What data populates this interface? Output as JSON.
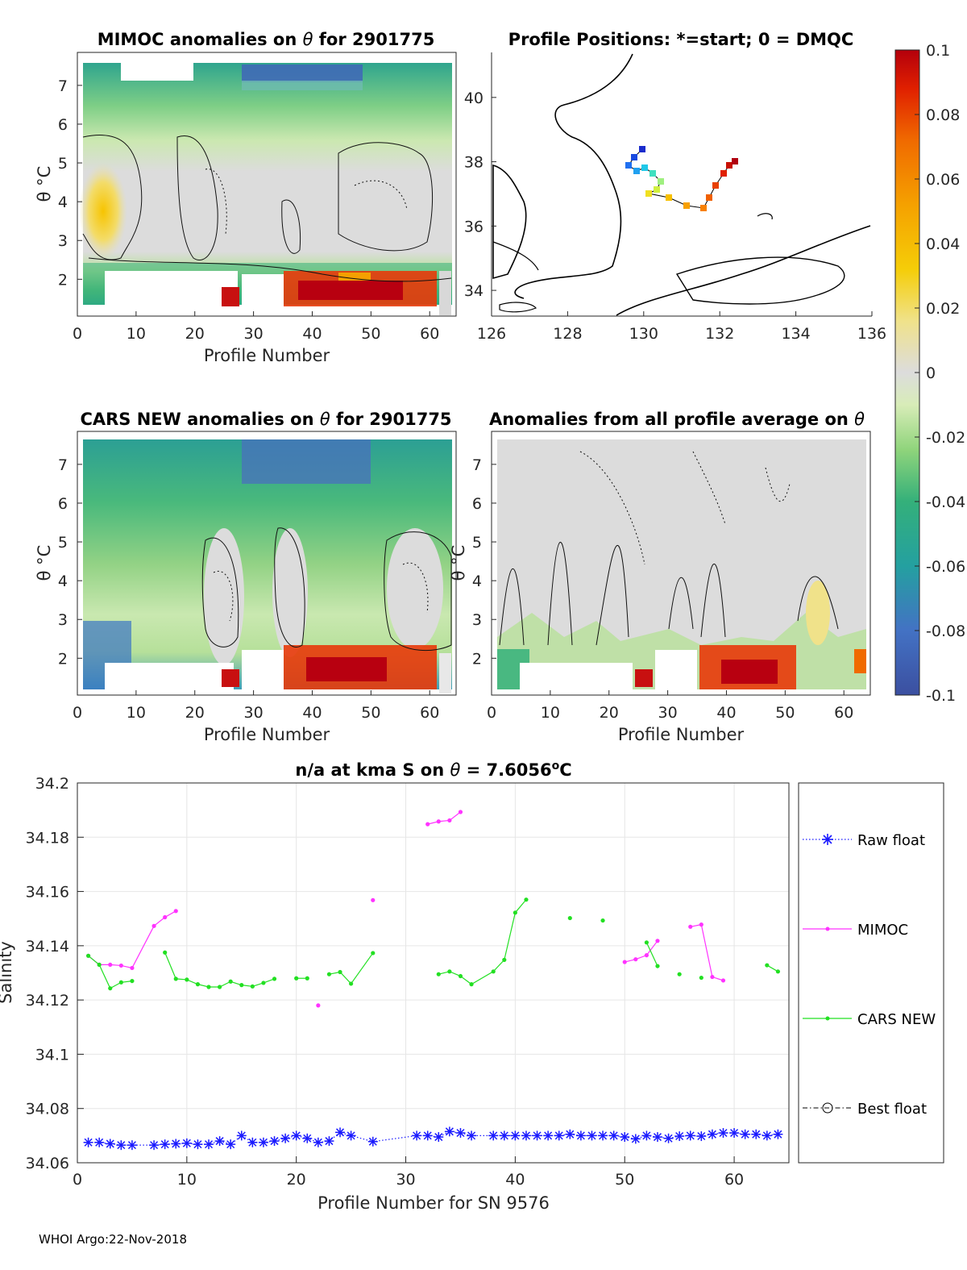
{
  "colors": {
    "raw": "#1a1aff",
    "mimoc": "#ff33ff",
    "cars": "#22e022",
    "best": "#000000",
    "grid": "#e6e6e6",
    "axis": "#262626"
  },
  "panels": {
    "mimoc": {
      "title_a": "MIMOC anomalies on ",
      "title_sym": "θ",
      "title_b": "  for 2901775",
      "xlabel": "Profile Number",
      "ylabel": "θ °C",
      "xticks": [
        "0",
        "10",
        "20",
        "30",
        "40",
        "50",
        "60"
      ],
      "yticks": [
        "2",
        "3",
        "4",
        "5",
        "6",
        "7"
      ]
    },
    "map": {
      "title": "Profile Positions: *=start; 0 = DMQC",
      "xticks": [
        "126",
        "128",
        "130",
        "132",
        "134",
        "136"
      ],
      "yticks": [
        "34",
        "36",
        "38",
        "40"
      ]
    },
    "cars": {
      "title_a": "CARS NEW anomalies on ",
      "title_sym": "θ",
      "title_b": " for 2901775",
      "xlabel": "Profile Number",
      "ylabel": "θ °C",
      "xticks": [
        "0",
        "10",
        "20",
        "30",
        "40",
        "50",
        "60"
      ],
      "yticks": [
        "2",
        "3",
        "4",
        "5",
        "6",
        "7"
      ]
    },
    "avg": {
      "title_a": "Anomalies from all profile average on ",
      "title_sym": "θ",
      "xlabel": "Profile Number",
      "ylabel": "θ °C",
      "xticks": [
        "0",
        "10",
        "20",
        "30",
        "40",
        "50",
        "60"
      ],
      "yticks": [
        "2",
        "3",
        "4",
        "5",
        "6",
        "7"
      ]
    }
  },
  "colorbar": {
    "ticks": [
      "0.1",
      "0.08",
      "0.06",
      "0.04",
      "0.02",
      "0",
      "-0.02",
      "-0.04",
      "-0.06",
      "-0.08",
      "-0.1"
    ]
  },
  "footer": "WHOI Argo:22-Nov-2018",
  "chart_data": {
    "type": "line",
    "title_a": "n/a at kma S on ",
    "title_sym": "θ",
    "title_b": " = 7.6056",
    "title_sup": "o",
    "title_unit": "C",
    "xlabel": "Profile Number for SN 9576",
    "ylabel": "Salinity",
    "xlim": [
      0,
      65
    ],
    "ylim": [
      34.06,
      34.2
    ],
    "xticks": [
      "0",
      "10",
      "20",
      "30",
      "40",
      "50",
      "60"
    ],
    "yticks": [
      "34.06",
      "34.08",
      "34.1",
      "34.12",
      "34.14",
      "34.16",
      "34.18",
      "34.2"
    ],
    "legend_position": "outside-right",
    "legend": [
      "Raw float",
      "MIMOC",
      "CARS NEW",
      "Best float"
    ],
    "series": [
      {
        "name": "Raw float",
        "style": "dotted-star",
        "segments": [
          [
            [
              1,
              34.0675
            ],
            [
              2,
              34.0675
            ],
            [
              3,
              34.067
            ],
            [
              4,
              34.0665
            ],
            [
              5,
              34.0665
            ],
            [
              7,
              34.0665
            ],
            [
              8,
              34.0668
            ],
            [
              9,
              34.067
            ],
            [
              10,
              34.0672
            ],
            [
              11,
              34.0668
            ],
            [
              12,
              34.0668
            ],
            [
              13,
              34.068
            ],
            [
              14,
              34.0668
            ],
            [
              15,
              34.07
            ],
            [
              16,
              34.0675
            ],
            [
              17,
              34.0675
            ],
            [
              18,
              34.068
            ],
            [
              19,
              34.069
            ],
            [
              20,
              34.07
            ],
            [
              21,
              34.069
            ],
            [
              22,
              34.0675
            ],
            [
              23,
              34.068
            ],
            [
              24,
              34.0712
            ],
            [
              25,
              34.07
            ],
            [
              27,
              34.0678
            ],
            [
              31,
              34.07
            ],
            [
              32,
              34.07
            ],
            [
              33,
              34.0695
            ],
            [
              34,
              34.0715
            ],
            [
              35,
              34.071
            ],
            [
              36,
              34.07
            ],
            [
              38,
              34.07
            ],
            [
              39,
              34.07
            ],
            [
              40,
              34.07
            ],
            [
              41,
              34.07
            ],
            [
              42,
              34.07
            ],
            [
              43,
              34.07
            ],
            [
              44,
              34.07
            ],
            [
              45,
              34.0705
            ],
            [
              46,
              34.07
            ],
            [
              47,
              34.07
            ],
            [
              48,
              34.07
            ],
            [
              49,
              34.07
            ],
            [
              50,
              34.0695
            ],
            [
              51,
              34.0688
            ],
            [
              52,
              34.07
            ],
            [
              53,
              34.0695
            ],
            [
              54,
              34.069
            ],
            [
              55,
              34.0698
            ],
            [
              56,
              34.07
            ],
            [
              57,
              34.0698
            ],
            [
              58,
              34.0705
            ],
            [
              59,
              34.071
            ],
            [
              60,
              34.071
            ],
            [
              61,
              34.0705
            ],
            [
              62,
              34.0705
            ],
            [
              63,
              34.07
            ],
            [
              64,
              34.0705
            ]
          ]
        ]
      },
      {
        "name": "MIMOC",
        "style": "solid-dot",
        "segments": [
          [
            [
              1,
              34.1363
            ],
            [
              2,
              34.133
            ],
            [
              3,
              34.133
            ],
            [
              4,
              34.1327
            ],
            [
              5,
              34.1318
            ],
            [
              7,
              34.1473
            ],
            [
              8,
              34.1505
            ],
            [
              9,
              34.1528
            ]
          ],
          [
            [
              22,
              34.118
            ]
          ],
          [
            [
              27,
              34.1568
            ]
          ],
          [
            [
              32,
              34.1848
            ],
            [
              33,
              34.1858
            ],
            [
              34,
              34.1862
            ],
            [
              35,
              34.1893
            ]
          ],
          [
            [
              50,
              34.134
            ],
            [
              51,
              34.135
            ],
            [
              52,
              34.1365
            ],
            [
              53,
              34.1418
            ]
          ],
          [
            [
              56,
              34.147
            ],
            [
              57,
              34.1478
            ],
            [
              58,
              34.1285
            ],
            [
              59,
              34.1272
            ]
          ]
        ]
      },
      {
        "name": "CARS NEW",
        "style": "solid-dot",
        "segments": [
          [
            [
              1,
              34.1363
            ],
            [
              2,
              34.133
            ],
            [
              3,
              34.1243
            ],
            [
              4,
              34.1265
            ],
            [
              5,
              34.127
            ]
          ],
          [
            [
              8,
              34.1375
            ],
            [
              9,
              34.1278
            ],
            [
              10,
              34.1275
            ],
            [
              11,
              34.1258
            ],
            [
              12,
              34.1248
            ],
            [
              13,
              34.1248
            ],
            [
              14,
              34.1268
            ],
            [
              15,
              34.1255
            ],
            [
              16,
              34.125
            ],
            [
              17,
              34.1263
            ],
            [
              18,
              34.1278
            ]
          ],
          [
            [
              20,
              34.128
            ],
            [
              21,
              34.128
            ]
          ],
          [
            [
              23,
              34.1295
            ],
            [
              24,
              34.1303
            ],
            [
              25,
              34.126
            ],
            [
              27,
              34.1373
            ]
          ],
          [
            [
              33,
              34.1295
            ],
            [
              34,
              34.1305
            ],
            [
              35,
              34.1288
            ],
            [
              36,
              34.1258
            ],
            [
              38,
              34.1305
            ],
            [
              39,
              34.1348
            ],
            [
              40,
              34.1522
            ],
            [
              41,
              34.157
            ]
          ],
          [
            [
              45,
              34.1502
            ]
          ],
          [
            [
              48,
              34.1493
            ]
          ],
          [
            [
              52,
              34.1412
            ],
            [
              53,
              34.1325
            ]
          ],
          [
            [
              55,
              34.1295
            ]
          ],
          [
            [
              57,
              34.1282
            ]
          ],
          [
            [
              63,
              34.1328
            ],
            [
              64,
              34.1305
            ]
          ]
        ]
      }
    ]
  }
}
